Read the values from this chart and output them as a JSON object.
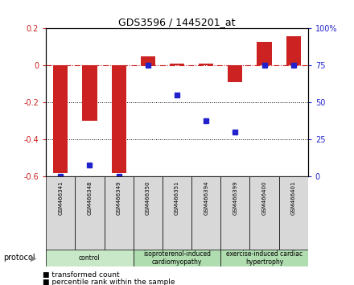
{
  "title": "GDS3596 / 1445201_at",
  "samples": [
    "GSM466341",
    "GSM466348",
    "GSM466349",
    "GSM466350",
    "GSM466351",
    "GSM466394",
    "GSM466399",
    "GSM466400",
    "GSM466401"
  ],
  "bar_values": [
    -0.58,
    -0.3,
    -0.58,
    0.05,
    0.01,
    0.01,
    -0.09,
    0.13,
    0.16
  ],
  "dot_values_pct": [
    0,
    8,
    0,
    75,
    55,
    38,
    30,
    75,
    75
  ],
  "left_ylim": [
    -0.6,
    0.2
  ],
  "right_ylim": [
    0,
    100
  ],
  "left_yticks": [
    -0.6,
    -0.4,
    -0.2,
    0.0,
    0.2
  ],
  "right_yticks": [
    0,
    25,
    50,
    75,
    100
  ],
  "left_yticklabels": [
    "-0.6",
    "-0.4",
    "-0.2",
    "0",
    "0.2"
  ],
  "right_yticklabels": [
    "0",
    "25",
    "50",
    "75",
    "100%"
  ],
  "bar_color": "#cc2222",
  "dot_color": "#2222cc",
  "group_configs": [
    {
      "start": 0,
      "end": 3,
      "label": "control",
      "color": "#c8e8c8"
    },
    {
      "start": 3,
      "end": 6,
      "label": "isoproterenol-induced\ncardiomyopathy",
      "color": "#b0ddb0"
    },
    {
      "start": 6,
      "end": 9,
      "label": "exercise-induced cardiac\nhypertrophy",
      "color": "#b0ddb0"
    }
  ],
  "protocol_label": "protocol",
  "legend_bar_label": "transformed count",
  "legend_dot_label": "percentile rank within the sample"
}
